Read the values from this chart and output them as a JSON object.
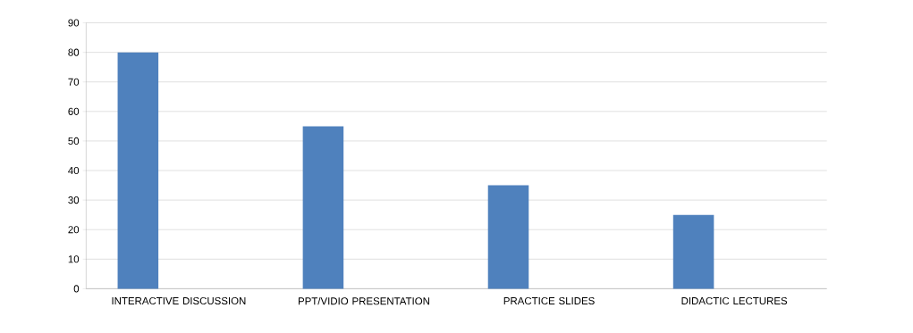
{
  "chart_data": {
    "type": "bar",
    "categories": [
      "INTERACTIVE DISCUSSION",
      "PPT/VIDIO PRESENTATION",
      "PRACTICE SLIDES",
      "DIDACTIC LECTURES"
    ],
    "series": [
      {
        "color": "#4f81bd",
        "values": [
          80,
          55,
          35,
          25
        ]
      }
    ],
    "ylim": [
      0,
      90
    ],
    "yticks": [
      0,
      10,
      20,
      30,
      40,
      50,
      60,
      70,
      80,
      90
    ],
    "grid": "y"
  }
}
